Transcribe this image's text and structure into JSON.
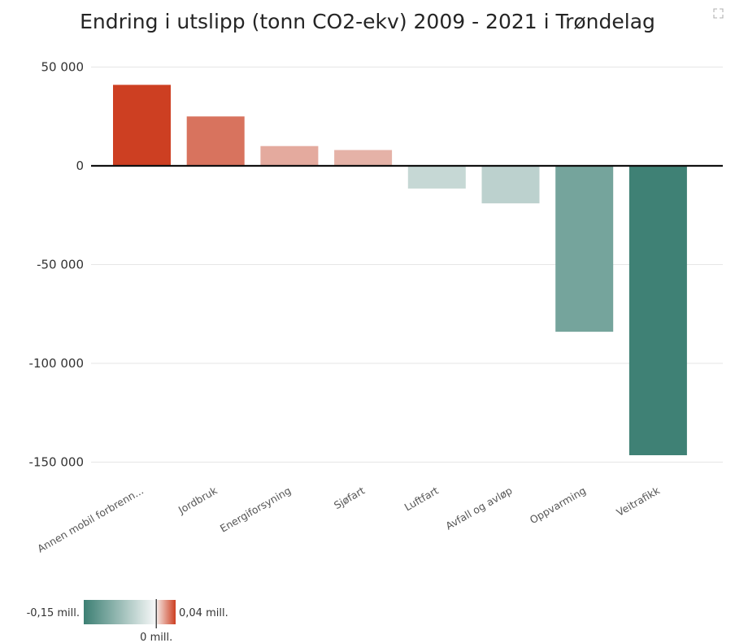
{
  "chart_data": {
    "type": "bar",
    "title": "Endring i utslipp (tonn CO2-ekv) 2009 - 2021 i Trøndelag",
    "categories": [
      "Annen mobil forbrenn...",
      "Jordbruk",
      "Energiforsyning",
      "Sjøfart",
      "Luftfart",
      "Avfall og avløp",
      "Oppvarming",
      "Veitrafikk"
    ],
    "values": [
      41000,
      25000,
      10000,
      8000,
      -11500,
      -19000,
      -84000,
      -146500
    ],
    "yticks": [
      50000,
      0,
      -50000,
      -100000,
      -150000
    ],
    "ytick_labels": [
      "50 000",
      "0",
      "-50 000",
      "-100 000",
      "-150 000"
    ],
    "ylim": [
      -160000,
      50000
    ],
    "grid": true,
    "xlabel": "",
    "ylabel": "",
    "legend": {
      "type": "color-gradient",
      "placement": "bottom-left",
      "min_label": "-0,15 mill.",
      "mid_label": "0 mill.",
      "max_label": "0,04 mill.",
      "min_value": -150000,
      "max_value": 40000,
      "neg_color": "#3c7f73",
      "mid_color": "#f4f6f6",
      "pos_color": "#cd3f22"
    }
  },
  "ui": {
    "expand_icon": "expand-icon"
  }
}
